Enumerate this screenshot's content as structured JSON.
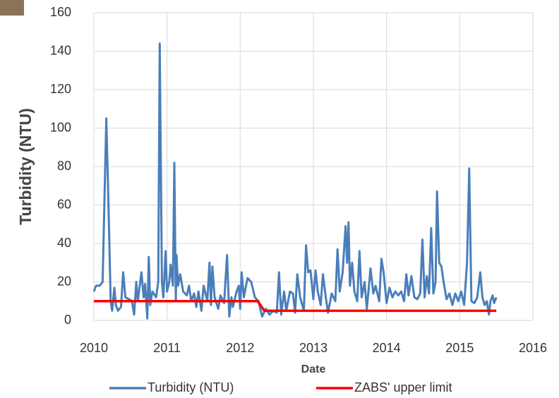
{
  "chart_data": {
    "type": "line",
    "x_label": "Date",
    "y_label": "Turbidity (NTU)",
    "xlim": [
      2010,
      2016
    ],
    "xticks": [
      2010,
      2011,
      2012,
      2013,
      2014,
      2015,
      2016
    ],
    "ylim": [
      0,
      160
    ],
    "yticks": [
      0,
      20,
      40,
      60,
      80,
      100,
      120,
      140,
      160
    ],
    "grid": true,
    "legend": "bottom",
    "series": [
      {
        "name": "Turbidity (NTU)",
        "color": "#4a7ebb",
        "x": [
          2010.0,
          2010.03,
          2010.08,
          2010.12,
          2010.17,
          2010.2,
          2010.23,
          2010.25,
          2010.28,
          2010.3,
          2010.33,
          2010.37,
          2010.4,
          2010.43,
          2010.48,
          2010.52,
          2010.55,
          2010.58,
          2010.6,
          2010.65,
          2010.68,
          2010.7,
          2010.73,
          2010.75,
          2010.77,
          2010.8,
          2010.85,
          2010.88,
          2010.9,
          2010.93,
          2010.95,
          2010.98,
          2011.0,
          2011.03,
          2011.05,
          2011.08,
          2011.1,
          2011.12,
          2011.13,
          2011.15,
          2011.18,
          2011.22,
          2011.27,
          2011.3,
          2011.33,
          2011.37,
          2011.4,
          2011.43,
          2011.47,
          2011.5,
          2011.55,
          2011.58,
          2011.6,
          2011.62,
          2011.65,
          2011.7,
          2011.73,
          2011.78,
          2011.82,
          2011.85,
          2011.88,
          2011.9,
          2011.95,
          2011.98,
          2012.0,
          2012.02,
          2012.05,
          2012.1,
          2012.15,
          2012.2,
          2012.25,
          2012.28,
          2012.3,
          2012.35,
          2012.4,
          2012.45,
          2012.5,
          2012.53,
          2012.56,
          2012.6,
          2012.63,
          2012.68,
          2012.72,
          2012.75,
          2012.78,
          2012.82,
          2012.87,
          2012.9,
          2012.93,
          2012.96,
          2013.0,
          2013.03,
          2013.06,
          2013.1,
          2013.13,
          2013.17,
          2013.2,
          2013.25,
          2013.3,
          2013.33,
          2013.36,
          2013.4,
          2013.44,
          2013.46,
          2013.48,
          2013.5,
          2013.53,
          2013.56,
          2013.6,
          2013.63,
          2013.66,
          2013.7,
          2013.73,
          2013.75,
          2013.78,
          2013.82,
          2013.85,
          2013.9,
          2013.93,
          2013.96,
          2014.0,
          2014.04,
          2014.08,
          2014.12,
          2014.16,
          2014.2,
          2014.24,
          2014.27,
          2014.3,
          2014.34,
          2014.38,
          2014.42,
          2014.46,
          2014.49,
          2014.52,
          2014.55,
          2014.58,
          2014.61,
          2014.64,
          2014.67,
          2014.69,
          2014.72,
          2014.75,
          2014.78,
          2014.82,
          2014.86,
          2014.9,
          2014.94,
          2014.98,
          2015.02,
          2015.06,
          2015.1,
          2015.13,
          2015.16,
          2015.2,
          2015.24,
          2015.28,
          2015.31,
          2015.34,
          2015.37,
          2015.4,
          2015.42,
          2015.45,
          2015.47,
          2015.5
        ],
        "values": [
          15,
          18,
          18,
          20,
          105,
          60,
          10,
          5,
          17,
          8,
          5,
          7,
          25,
          12,
          11,
          10,
          3,
          20,
          10,
          25,
          12,
          19,
          1,
          33,
          8,
          15,
          12,
          20,
          144,
          20,
          12,
          36,
          15,
          20,
          29,
          18,
          82,
          10,
          34,
          18,
          24,
          15,
          13,
          18,
          10,
          14,
          7,
          15,
          5,
          18,
          10,
          30,
          8,
          28,
          12,
          6,
          13,
          9,
          34,
          2,
          12,
          7,
          15,
          18,
          6,
          25,
          12,
          22,
          20,
          12,
          10,
          5,
          2,
          6,
          3,
          5,
          4,
          25,
          3,
          15,
          5,
          15,
          14,
          4,
          24,
          12,
          5,
          39,
          25,
          26,
          11,
          26,
          15,
          8,
          24,
          12,
          4,
          14,
          10,
          37,
          15,
          25,
          49,
          30,
          51,
          18,
          30,
          15,
          10,
          36,
          12,
          20,
          6,
          14,
          27,
          14,
          18,
          10,
          32,
          25,
          9,
          17,
          12,
          15,
          13,
          15,
          10,
          24,
          13,
          23,
          12,
          11,
          14,
          42,
          12,
          23,
          14,
          48,
          14,
          20,
          67,
          30,
          28,
          20,
          11,
          14,
          8,
          14,
          10,
          15,
          8,
          30,
          79,
          10,
          9,
          12,
          25,
          12,
          8,
          10,
          3,
          10,
          13,
          9,
          12
        ]
      },
      {
        "name": "ZABS' upper limit",
        "color": "#ff0000",
        "x": [
          2010,
          2012.24,
          2012.33,
          2015.5
        ],
        "values": [
          10,
          10,
          5,
          5
        ]
      }
    ]
  }
}
